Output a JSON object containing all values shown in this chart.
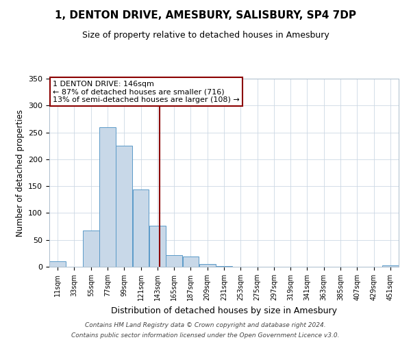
{
  "title": "1, DENTON DRIVE, AMESBURY, SALISBURY, SP4 7DP",
  "subtitle": "Size of property relative to detached houses in Amesbury",
  "xlabel": "Distribution of detached houses by size in Amesbury",
  "ylabel": "Number of detached properties",
  "bin_labels": [
    "11sqm",
    "33sqm",
    "55sqm",
    "77sqm",
    "99sqm",
    "121sqm",
    "143sqm",
    "165sqm",
    "187sqm",
    "209sqm",
    "231sqm",
    "253sqm",
    "275sqm",
    "297sqm",
    "319sqm",
    "341sqm",
    "363sqm",
    "385sqm",
    "407sqm",
    "429sqm",
    "451sqm"
  ],
  "bin_edges": [
    0,
    22,
    44,
    66,
    88,
    110,
    132,
    154,
    176,
    198,
    220,
    242,
    264,
    286,
    308,
    330,
    352,
    374,
    396,
    418,
    440,
    462
  ],
  "counts": [
    10,
    0,
    68,
    260,
    225,
    144,
    77,
    22,
    19,
    5,
    1,
    0,
    0,
    0,
    0,
    0,
    0,
    0,
    0,
    0,
    2
  ],
  "bar_color": "#c8d8e8",
  "bar_edge_color": "#5a9ac8",
  "property_value": 146,
  "vline_color": "#8b0000",
  "annotation_box_edge_color": "#8b0000",
  "annotation_text_line1": "1 DENTON DRIVE: 146sqm",
  "annotation_text_line2": "← 87% of detached houses are smaller (716)",
  "annotation_text_line3": "13% of semi-detached houses are larger (108) →",
  "ylim": [
    0,
    350
  ],
  "yticks": [
    0,
    50,
    100,
    150,
    200,
    250,
    300,
    350
  ],
  "footer_line1": "Contains HM Land Registry data © Crown copyright and database right 2024.",
  "footer_line2": "Contains public sector information licensed under the Open Government Licence v3.0."
}
